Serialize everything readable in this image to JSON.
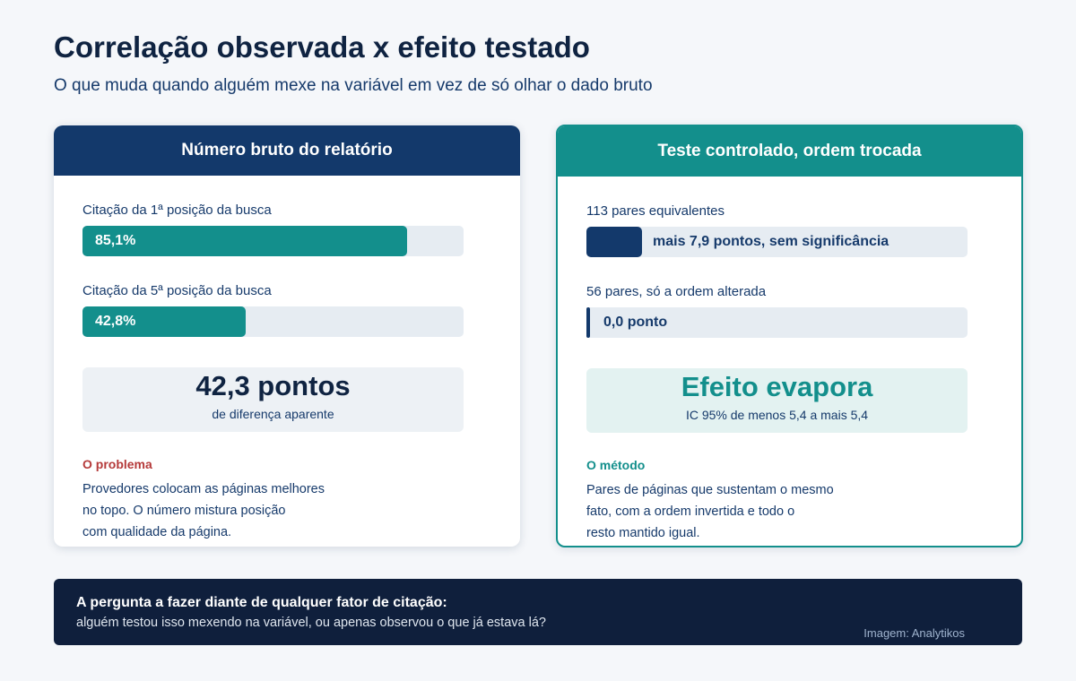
{
  "header": {
    "title": "Correlação observada x efeito testado",
    "subtitle": "O que muda quando alguém mexe na variável em vez de só olhar o dado bruto"
  },
  "left_panel": {
    "title": "Número bruto do relatório",
    "rows": [
      {
        "label": "Citação da 1ª posição da busca",
        "value_text": "85,1%",
        "value": 85.1
      },
      {
        "label": "Citação da 5ª posição da busca",
        "value_text": "42,8%",
        "value": 42.8
      }
    ],
    "stat": {
      "big": "42,3 pontos",
      "small": "de diferença aparente"
    },
    "note": {
      "heading": "O problema",
      "lines": [
        "Provedores colocam as páginas melhores",
        "no topo. O número mistura posição",
        "com qualidade da página."
      ]
    }
  },
  "right_panel": {
    "title": "Teste controlado, ordem trocada",
    "rows": [
      {
        "label": "113 pares equivalentes",
        "value_text": "mais 7,9 pontos, sem significância",
        "value": 7.9
      },
      {
        "label": "56 pares, só a ordem alterada",
        "value_text": "0,0 ponto",
        "value": 0.0
      }
    ],
    "stat": {
      "big": "Efeito evapora",
      "small": "IC 95% de menos 5,4 a mais 5,4"
    },
    "note": {
      "heading": "O método",
      "lines": [
        "Pares de páginas que sustentam o mesmo",
        "fato, com a ordem invertida e todo o",
        "resto mantido igual."
      ]
    }
  },
  "footer": {
    "question": "A pergunta a fazer diante de qualquer fator de citação:",
    "answer": "alguém testou isso mexendo na variável, ou apenas observou o que já estava lá?",
    "credit": "Imagem: Analytikos"
  },
  "colors": {
    "navy": "#13396b",
    "teal": "#138f8c",
    "problem_red": "#b53a3a",
    "footer_bg": "#0f1f3c"
  }
}
